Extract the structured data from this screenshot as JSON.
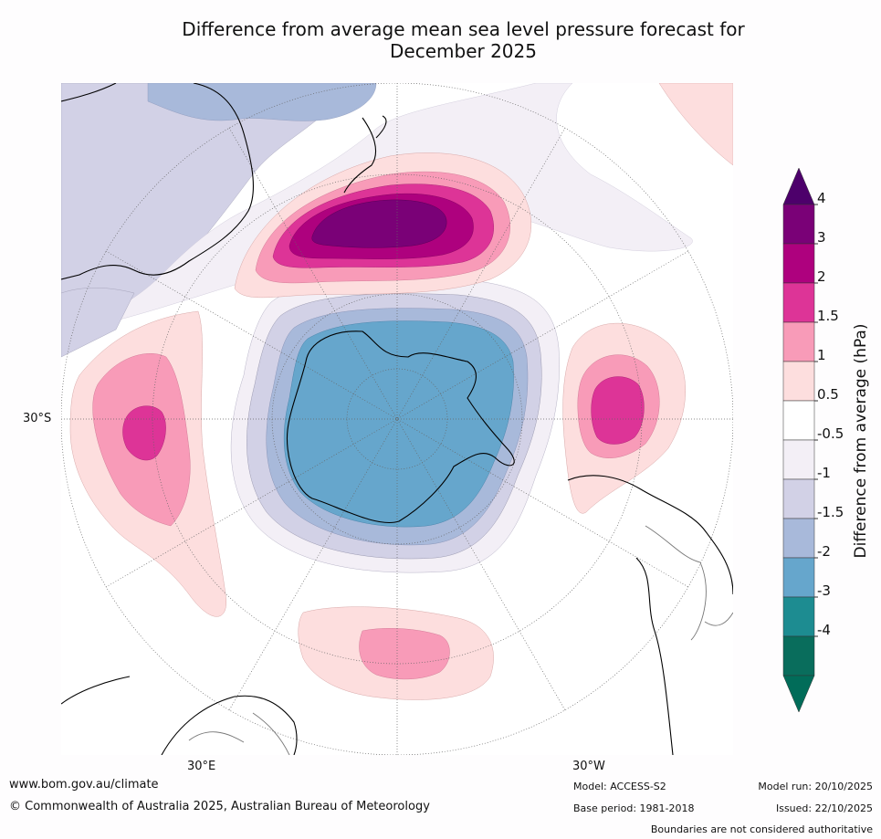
{
  "title": {
    "line1": "Difference from average mean sea level pressure forecast for",
    "line2": "December 2025"
  },
  "map": {
    "projection": "south-polar-stereographic",
    "graticule_labels": {
      "lat": "30°S",
      "lon_east": "30°E",
      "lon_west": "30°W"
    },
    "features": [
      "positive-anomaly-new-zealand",
      "positive-anomaly-indian-ocean",
      "positive-anomaly-atlantic",
      "positive-anomaly-south-pacific-east",
      "negative-anomaly-antarctica",
      "antarctica",
      "australia",
      "new-zealand",
      "south-america",
      "africa"
    ]
  },
  "colorbar": {
    "label": "Difference from average (hPa)",
    "ticks": [
      "4",
      "3",
      "2",
      "1.5",
      "1",
      "0.5",
      "-0.5",
      "-1",
      "-1.5",
      "-2",
      "-3",
      "-4"
    ],
    "colors": [
      "#7a0177",
      "#ae017e",
      "#dd3497",
      "#f89bb8",
      "#fddede",
      "#ffffff",
      "#f3eff6",
      "#d2d1e6",
      "#a8b9da",
      "#66a6cc",
      "#1d8c91",
      "#096d5c"
    ],
    "over_color": "#4d006b",
    "under_color": "#016c59"
  },
  "footer": {
    "website": "www.bom.gov.au/climate",
    "copyright": "© Commonwealth of Australia 2025, Australian Bureau of Meteorology",
    "model": "Model: ACCESS-S2",
    "base_period": "Base period: 1981-2018",
    "model_run": "Model run: 20/10/2025",
    "issued": "Issued: 22/10/2025",
    "disclaimer": "Boundaries are not considered authoritative"
  }
}
